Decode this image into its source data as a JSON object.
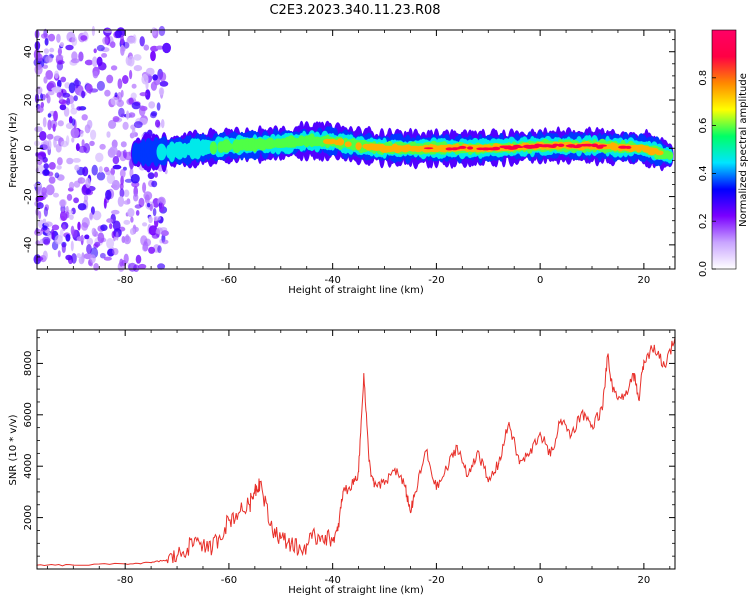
{
  "title": "C2E3.2023.340.11.23.R08",
  "chart_data": [
    {
      "type": "heatmap",
      "xlabel": "Height of straight line (km)",
      "ylabel": "Frequency (Hz)",
      "xlim": [
        -97,
        26
      ],
      "ylim": [
        -50,
        49
      ],
      "xticks": [
        -80,
        -60,
        -40,
        -20,
        0,
        20
      ],
      "yticks": [
        -40,
        -20,
        0,
        20,
        40
      ],
      "colorbar": {
        "label": "Normalized spectral amplitude",
        "range": [
          0,
          1
        ],
        "ticks": [
          0.0,
          0.2,
          0.4,
          0.6,
          0.8
        ],
        "tick_labels": [
          "0.0",
          "0.2",
          "0.4",
          "0.6",
          "0.8"
        ],
        "colormap": [
          "#ffffff",
          "#c9a5ff",
          "#7a00ff",
          "#0000ff",
          "#00e5ff",
          "#00ff66",
          "#ffff00",
          "#ff8800",
          "#ff0044",
          "#ff0066"
        ]
      },
      "ridge": {
        "x": [
          -78,
          -70,
          -60,
          -50,
          -45,
          -40,
          -35,
          -30,
          -20,
          -10,
          0,
          10,
          20,
          25
        ],
        "frequency": [
          -2,
          -1,
          1,
          2,
          3,
          3,
          1,
          0,
          0,
          0,
          1,
          1,
          0,
          -3
        ],
        "amplitude": [
          0.35,
          0.45,
          0.55,
          0.6,
          0.65,
          0.7,
          0.7,
          0.75,
          0.8,
          0.85,
          0.9,
          0.85,
          0.8,
          0.6
        ]
      },
      "noise_region_x": [
        -97,
        -72
      ]
    },
    {
      "type": "line",
      "xlabel": "Height of straight line (km)",
      "ylabel": "SNR (10 * v/v)",
      "xlim": [
        -97,
        26
      ],
      "ylim": [
        0,
        9300
      ],
      "xticks": [
        -80,
        -60,
        -40,
        -20,
        0,
        20
      ],
      "yticks": [
        2000,
        4000,
        6000,
        8000
      ],
      "color": "#e8302a",
      "x": [
        -97,
        -90,
        -80,
        -75,
        -72,
        -70,
        -68,
        -66,
        -64,
        -62,
        -60,
        -58,
        -56,
        -55,
        -54,
        -52,
        -50,
        -48,
        -46,
        -44,
        -42,
        -40,
        -39,
        -38,
        -36,
        -35,
        -34,
        -33,
        -32,
        -30,
        -28,
        -26,
        -25,
        -24,
        -22,
        -20,
        -18,
        -16,
        -14,
        -12,
        -10,
        -8,
        -6,
        -4,
        -2,
        0,
        2,
        4,
        6,
        8,
        10,
        12,
        13,
        14,
        16,
        18,
        19,
        20,
        22,
        24,
        26
      ],
      "y": [
        150,
        150,
        200,
        250,
        350,
        500,
        800,
        1200,
        700,
        1200,
        1900,
        2200,
        2500,
        3100,
        3400,
        1700,
        1200,
        1000,
        700,
        1200,
        1300,
        1100,
        1500,
        3000,
        3300,
        3800,
        7600,
        4200,
        3200,
        3300,
        3900,
        3200,
        2200,
        3000,
        4600,
        3100,
        3900,
        4800,
        3600,
        4600,
        3400,
        4100,
        5700,
        4100,
        4500,
        5300,
        4400,
        5800,
        5200,
        6100,
        5600,
        6200,
        8300,
        6900,
        6600,
        7600,
        6600,
        8100,
        8700,
        7900,
        9000
      ]
    }
  ]
}
